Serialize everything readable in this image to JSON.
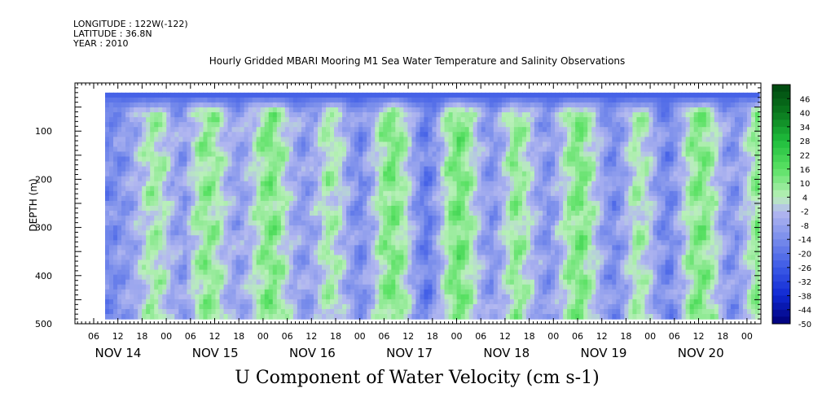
{
  "header": {
    "longitude": "LONGITUDE : 122W(-122)",
    "latitude": "LATITUDE : 36.8N",
    "year": "YEAR : 2010"
  },
  "chart_data": {
    "type": "heatmap",
    "title": "Hourly Gridded MBARI Mooring M1 Sea Water Temperature and Salinity Observations",
    "xlabel": "U Component of Water Velocity (cm s-1)",
    "ylabel": "DEPTH (m)",
    "yticks": [
      100,
      200,
      300,
      400,
      500
    ],
    "yrange": [
      0,
      500
    ],
    "data_depth_range": [
      20,
      490
    ],
    "x_hour_labels": [
      "06",
      "12",
      "18",
      "00",
      "06",
      "12",
      "18",
      "00",
      "06",
      "12",
      "18",
      "00",
      "06",
      "12",
      "18",
      "00",
      "06",
      "12",
      "18",
      "00",
      "06",
      "12",
      "18",
      "00",
      "06",
      "12",
      "18",
      "00"
    ],
    "x_day_labels": [
      "NOV 14",
      "NOV 15",
      "NOV 16",
      "NOV 17",
      "NOV 18",
      "NOV 19",
      "NOV 20"
    ],
    "colorbar": {
      "labels": [
        "46",
        "40",
        "34",
        "28",
        "22",
        "16",
        "10",
        "4",
        "-2",
        "-8",
        "-14",
        "-20",
        "-26",
        "-32",
        "-38",
        "-44",
        "-50"
      ],
      "range": [
        -50,
        52
      ]
    },
    "column_means": [
      -14,
      -12,
      -9,
      -2,
      6,
      4,
      -6,
      -10,
      3,
      10,
      6,
      -4,
      -9,
      -2,
      8,
      12,
      4,
      -6,
      -10,
      -4,
      6,
      2,
      -8,
      -14,
      -5,
      8,
      12,
      5,
      -10,
      -18,
      -8,
      8,
      14,
      6,
      -6,
      -12,
      -2,
      10,
      4,
      -6,
      -12,
      -4,
      8,
      12,
      4,
      -8,
      -14,
      -6,
      6,
      2,
      -10,
      -16,
      -6,
      8,
      12,
      4,
      -8,
      -12,
      -2,
      10
    ],
    "surface_value": -24,
    "colors": {
      "axis": "#000000",
      "background": "#ffffff"
    }
  }
}
